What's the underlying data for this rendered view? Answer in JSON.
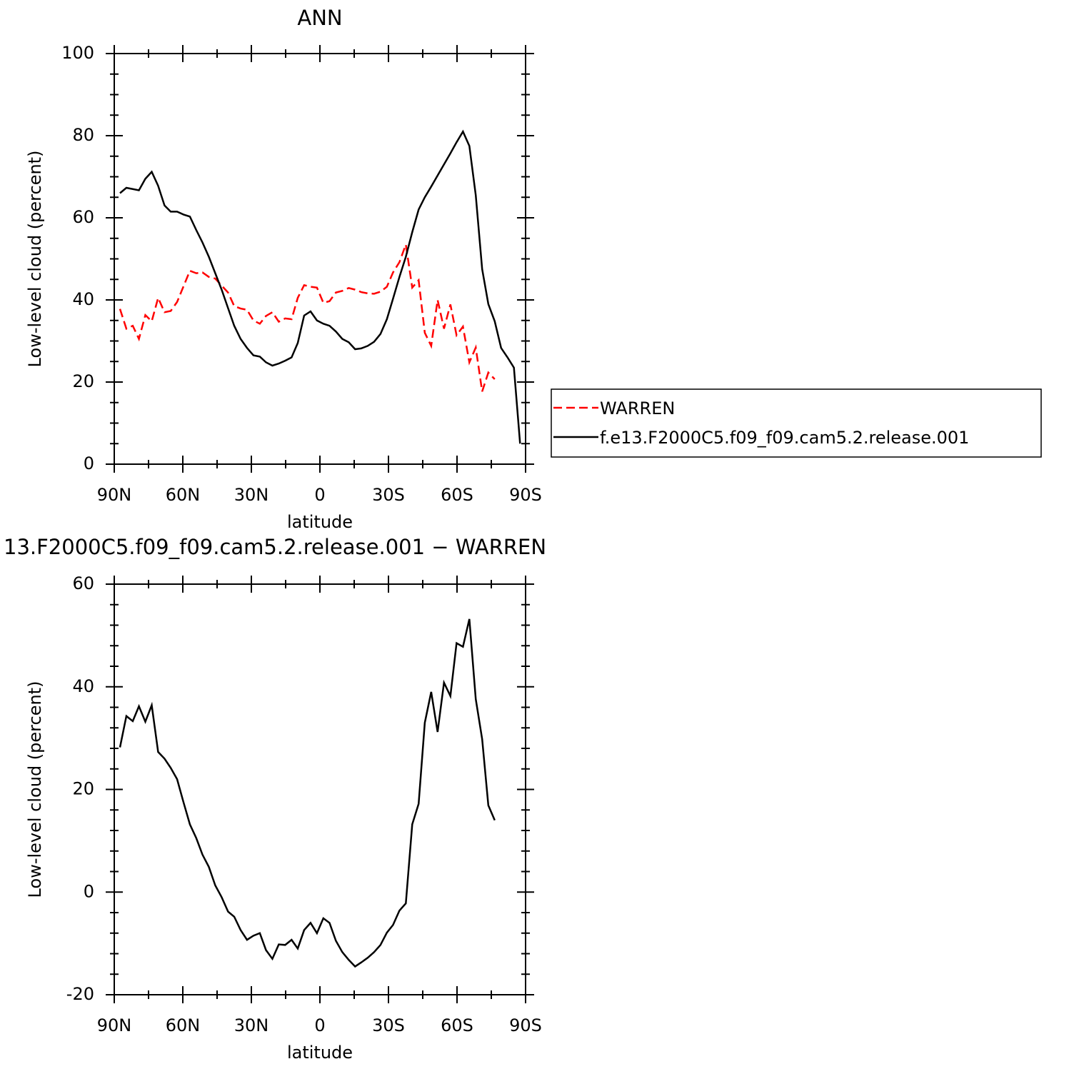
{
  "chart_data": [
    {
      "type": "line",
      "title": "ANN",
      "xlabel": "latitude",
      "ylabel": "Low-level cloud (percent)",
      "x": [
        87.5,
        84.7,
        81.9,
        79.2,
        76.4,
        73.6,
        70.8,
        68.0,
        65.3,
        62.5,
        59.7,
        56.9,
        54.1,
        51.4,
        48.6,
        45.8,
        43.0,
        40.2,
        37.5,
        34.7,
        31.9,
        29.1,
        26.3,
        23.6,
        20.8,
        18.0,
        15.2,
        12.4,
        9.7,
        6.9,
        4.1,
        1.3,
        -1.5,
        -4.2,
        -7.0,
        -9.8,
        -12.6,
        -15.4,
        -18.1,
        -20.9,
        -23.7,
        -26.5,
        -29.3,
        -32.0,
        -34.8,
        -37.6,
        -40.4,
        -43.2,
        -45.9,
        -48.7,
        -51.5,
        -54.3,
        -57.1,
        -59.8,
        -62.6,
        -65.4,
        -68.2,
        -71.0,
        -73.7,
        -76.5,
        -79.3,
        -82.1,
        -84.9,
        -87.6
      ],
      "series": [
        {
          "name": "WARREN",
          "color": "#ff0000",
          "dash": true,
          "values": [
            37.8,
            33,
            33.7,
            30.5,
            36.3,
            34.8,
            40.5,
            37,
            37.3,
            39.5,
            43.3,
            47.1,
            46.5,
            46.7,
            45.6,
            45.2,
            43.5,
            41.8,
            38.5,
            37.9,
            37.6,
            35,
            34.2,
            36.1,
            37,
            34.7,
            35.5,
            35.3,
            40.5,
            43.6,
            43.2,
            43,
            39.3,
            39.7,
            41.8,
            42.2,
            42.9,
            42.5,
            41.9,
            41.6,
            41.5,
            42,
            43.2,
            46.7,
            49.2,
            53.5,
            43,
            44.8,
            32,
            28.8,
            40,
            33,
            38.9,
            31.4,
            33.5,
            24.8,
            28.4,
            17.7,
            22.3,
            20.7,
            null,
            null,
            null,
            null
          ]
        },
        {
          "name": "f.e13.F2000C5.f09_f09.cam5.2.release.001",
          "color": "#000000",
          "dash": false,
          "values": [
            66,
            67.3,
            67,
            66.7,
            69.5,
            71.2,
            67.8,
            63,
            61.5,
            61.5,
            60.8,
            60.3,
            57,
            54,
            50.5,
            46.5,
            42.5,
            38,
            33.7,
            30.5,
            28.3,
            26.5,
            26.2,
            24.8,
            24,
            24.5,
            25.2,
            26,
            29.5,
            36.2,
            37.2,
            35,
            34.2,
            33.7,
            32.3,
            30.5,
            29.7,
            28,
            28.2,
            28.8,
            29.8,
            31.7,
            35.3,
            40.3,
            45.6,
            50.5,
            56.5,
            62,
            65,
            67.6,
            70.3,
            73,
            75.7,
            78.4,
            81,
            77.5,
            65.5,
            47.5,
            39,
            34.8,
            28.3,
            26,
            23.5,
            5
          ]
        }
      ],
      "xlim": [
        90,
        -90
      ],
      "xticks": [
        {
          "value": 90,
          "label": "90N"
        },
        {
          "value": 60,
          "label": "60N"
        },
        {
          "value": 30,
          "label": "30N"
        },
        0,
        {
          "value": -30,
          "label": "30S"
        },
        {
          "value": -60,
          "label": "60S"
        },
        {
          "value": -90,
          "label": "90S"
        }
      ],
      "xminorticks": [
        75,
        45,
        15,
        -15,
        -45,
        -75
      ],
      "ylim": [
        0,
        100
      ],
      "yticks": [
        0,
        20,
        40,
        60,
        80,
        100
      ],
      "yminorticks": [
        5,
        10,
        15,
        25,
        30,
        35,
        45,
        50,
        55,
        65,
        70,
        75,
        85,
        90,
        95
      ],
      "legend": "right"
    },
    {
      "type": "line",
      "title": "13.F2000C5.f09_f09.cam5.2.release.001  − WARREN",
      "xlabel": "latitude",
      "ylabel": "Low-level cloud (percent)",
      "x": [
        87.5,
        84.7,
        81.9,
        79.2,
        76.4,
        73.6,
        70.8,
        68.0,
        65.3,
        62.5,
        59.7,
        56.9,
        54.1,
        51.4,
        48.6,
        45.8,
        43.0,
        40.2,
        37.5,
        34.7,
        31.9,
        29.1,
        26.3,
        23.6,
        20.8,
        18.0,
        15.2,
        12.4,
        9.7,
        6.9,
        4.1,
        1.3,
        -1.5,
        -4.2,
        -7.0,
        -9.8,
        -12.6,
        -15.4,
        -18.1,
        -20.9,
        -23.7,
        -26.5,
        -29.3,
        -32.0,
        -34.8,
        -37.6,
        -40.4,
        -43.2,
        -45.9,
        -48.7,
        -51.5,
        -54.3,
        -57.1,
        -59.8,
        -62.6,
        -65.4,
        -68.2,
        -71.0,
        -73.7,
        -76.5
      ],
      "color": "#000000",
      "values": [
        28.2,
        34.3,
        33.3,
        36.2,
        33.2,
        36.4,
        27.3,
        26,
        24.2,
        22,
        17.5,
        13.2,
        10.5,
        7.3,
        4.9,
        1.3,
        -1,
        -3.8,
        -4.8,
        -7.4,
        -9.3,
        -8.5,
        -8,
        -11.3,
        -13,
        -10.2,
        -10.3,
        -9.3,
        -11,
        -7.4,
        -6,
        -8,
        -5.1,
        -6,
        -9.5,
        -11.7,
        -13.2,
        -14.5,
        -13.7,
        -12.8,
        -11.7,
        -10.3,
        -7.9,
        -6.4,
        -3.6,
        -2.2,
        13.2,
        17.2,
        33,
        39,
        31.2,
        40.8,
        38.2,
        48.5,
        47.8,
        53.2,
        37.6,
        29.8,
        16.9,
        14
      ],
      "xlim": [
        90,
        -90
      ],
      "xticks": [
        {
          "value": 90,
          "label": "90N"
        },
        {
          "value": 60,
          "label": "60N"
        },
        {
          "value": 30,
          "label": "30N"
        },
        0,
        {
          "value": -30,
          "label": "30S"
        },
        {
          "value": -60,
          "label": "60S"
        },
        {
          "value": -90,
          "label": "90S"
        }
      ],
      "xminorticks": [
        75,
        45,
        15,
        -15,
        -45,
        -75
      ],
      "ylim": [
        -20,
        60
      ],
      "yticks": [
        -20,
        0,
        20,
        40,
        60
      ],
      "yminorticks": [
        -16,
        -12,
        -8,
        -4,
        4,
        8,
        12,
        16,
        24,
        28,
        32,
        36,
        44,
        48,
        52,
        56
      ]
    }
  ]
}
